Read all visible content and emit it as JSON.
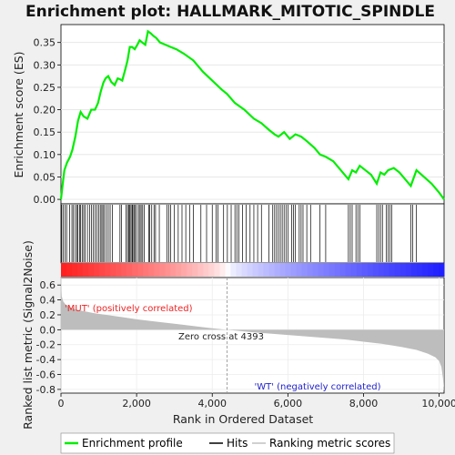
{
  "chart_data": [
    {
      "type": "line",
      "title": "Enrichment plot: HALLMARK_MITOTIC_SPINDLE",
      "ylabel": "Enrichment score (ES)",
      "ylim": [
        -0.01,
        0.39
      ],
      "yticks": [
        "0.00",
        "0.05",
        "0.10",
        "0.15",
        "0.20",
        "0.25",
        "0.30",
        "0.35"
      ],
      "ytick_values": [
        0,
        0.05,
        0.1,
        0.15,
        0.2,
        0.25,
        0.3,
        0.35
      ],
      "grid": true,
      "line_color": "#00ee00",
      "series": [
        {
          "name": "Enrichment profile",
          "x": [
            0,
            40,
            90,
            160,
            240,
            300,
            380,
            450,
            520,
            600,
            700,
            800,
            900,
            980,
            1050,
            1120,
            1180,
            1250,
            1330,
            1420,
            1500,
            1560,
            1620,
            1700,
            1760,
            1820,
            1880,
            1950,
            2020,
            2080,
            2150,
            2230,
            2300,
            2380,
            2440,
            2520,
            2620,
            2760,
            2900,
            3050,
            3250,
            3500,
            3750,
            4000,
            4250,
            4393,
            4600,
            4850,
            5100,
            5300,
            5500,
            5650,
            5750,
            5900,
            6050,
            6200,
            6350,
            6500,
            6700,
            6850,
            7000,
            7200,
            7400,
            7600,
            7700,
            7800,
            7900,
            8050,
            8200,
            8350,
            8450,
            8550,
            8650,
            8800,
            8950,
            9100,
            9250,
            9400,
            9600,
            9800,
            10000,
            10130
          ],
          "y": [
            0.0,
            0.03,
            0.065,
            0.082,
            0.095,
            0.11,
            0.14,
            0.175,
            0.195,
            0.185,
            0.18,
            0.2,
            0.2,
            0.215,
            0.24,
            0.26,
            0.27,
            0.275,
            0.262,
            0.255,
            0.27,
            0.268,
            0.265,
            0.29,
            0.31,
            0.34,
            0.34,
            0.335,
            0.345,
            0.355,
            0.35,
            0.345,
            0.375,
            0.37,
            0.365,
            0.36,
            0.35,
            0.345,
            0.34,
            0.335,
            0.325,
            0.31,
            0.285,
            0.265,
            0.245,
            0.235,
            0.215,
            0.2,
            0.18,
            0.17,
            0.155,
            0.145,
            0.14,
            0.15,
            0.135,
            0.145,
            0.14,
            0.13,
            0.115,
            0.1,
            0.095,
            0.085,
            0.065,
            0.045,
            0.065,
            0.06,
            0.075,
            0.065,
            0.055,
            0.035,
            0.06,
            0.055,
            0.065,
            0.07,
            0.06,
            0.045,
            0.03,
            0.065,
            0.05,
            0.035,
            0.015,
            0.0
          ]
        }
      ]
    },
    {
      "type": "scatter",
      "name_hint": "hits",
      "series": [
        {
          "name": "Hits",
          "x": [
            20,
            60,
            110,
            150,
            230,
            290,
            330,
            380,
            420,
            450,
            490,
            520,
            560,
            600,
            640,
            700,
            760,
            810,
            850,
            900,
            950,
            1000,
            1040,
            1080,
            1110,
            1150,
            1200,
            1250,
            1300,
            1360,
            1560,
            1600,
            1720,
            1760,
            1790,
            1820,
            1850,
            1880,
            1900,
            1930,
            1960,
            2000,
            2050,
            2090,
            2120,
            2160,
            2200,
            2320,
            2350,
            2400,
            2460,
            2500,
            2600,
            2800,
            2850,
            2900,
            3000,
            3100,
            3200,
            3300,
            3400,
            3500,
            3700,
            3850,
            4000,
            4100,
            4150,
            4300,
            4400,
            4500,
            4600,
            4650,
            4700,
            4800,
            4900,
            5000,
            5100,
            5200,
            5300,
            5500,
            5600,
            5650,
            5700,
            5750,
            5800,
            5850,
            5900,
            5950,
            6000,
            6100,
            6150,
            6200,
            6300,
            6350,
            6400,
            6500,
            6600,
            6850,
            7000,
            7600,
            7650,
            7700,
            7800,
            7850,
            7900,
            8350,
            8400,
            8450,
            8500,
            8600,
            8650,
            8700,
            8750,
            9250,
            9300,
            9400
          ]
        }
      ]
    },
    {
      "type": "area",
      "ylabel": "Ranked list metric (Signal2Noise)",
      "xlabel": "Rank in Ordered Dataset",
      "xlim": [
        0,
        10130
      ],
      "ylim": [
        -0.85,
        0.7
      ],
      "xticks": [
        "0",
        "2,000",
        "4,000",
        "6,000",
        "8,000",
        "10,000"
      ],
      "xtick_values": [
        0,
        2000,
        4000,
        6000,
        8000,
        10000
      ],
      "yticks": [
        "-0.8",
        "-0.6",
        "-0.4",
        "-0.2",
        "0.0",
        "0.2",
        "0.4",
        "0.6"
      ],
      "ytick_values": [
        -0.8,
        -0.6,
        -0.4,
        -0.2,
        0,
        0.2,
        0.4,
        0.6
      ],
      "zero_cross_label": "Zero cross at 4393",
      "zero_cross": 4393,
      "pos_label": "'MUT' (positively correlated)",
      "neg_label": "'WT' (negatively correlated)",
      "series": [
        {
          "name": "Ranking metric scores",
          "x": [
            0,
            20,
            60,
            120,
            250,
            400,
            600,
            900,
            1200,
            1600,
            2000,
            2500,
            3000,
            3500,
            4000,
            4393,
            5000,
            5500,
            6000,
            6500,
            7000,
            7500,
            8000,
            8500,
            9000,
            9400,
            9700,
            9900,
            10000,
            10060,
            10100,
            10130
          ],
          "y": [
            0.65,
            0.45,
            0.38,
            0.34,
            0.3,
            0.27,
            0.25,
            0.22,
            0.2,
            0.17,
            0.14,
            0.11,
            0.08,
            0.05,
            0.02,
            0.0,
            -0.03,
            -0.05,
            -0.07,
            -0.09,
            -0.11,
            -0.13,
            -0.16,
            -0.19,
            -0.23,
            -0.27,
            -0.32,
            -0.37,
            -0.42,
            -0.5,
            -0.65,
            -0.82
          ]
        }
      ]
    }
  ],
  "legend": {
    "items": [
      {
        "label": "Enrichment profile",
        "color": "#00ee00"
      },
      {
        "label": "Hits",
        "color": "#000000"
      },
      {
        "label": "Ranking metric scores",
        "color": "#c0c0c0"
      }
    ]
  },
  "colors": {
    "pos_label": "#ee2222",
    "neg_label": "#2222cc",
    "metric_fill": "#bdbdbd",
    "zero_line": "#999999"
  }
}
